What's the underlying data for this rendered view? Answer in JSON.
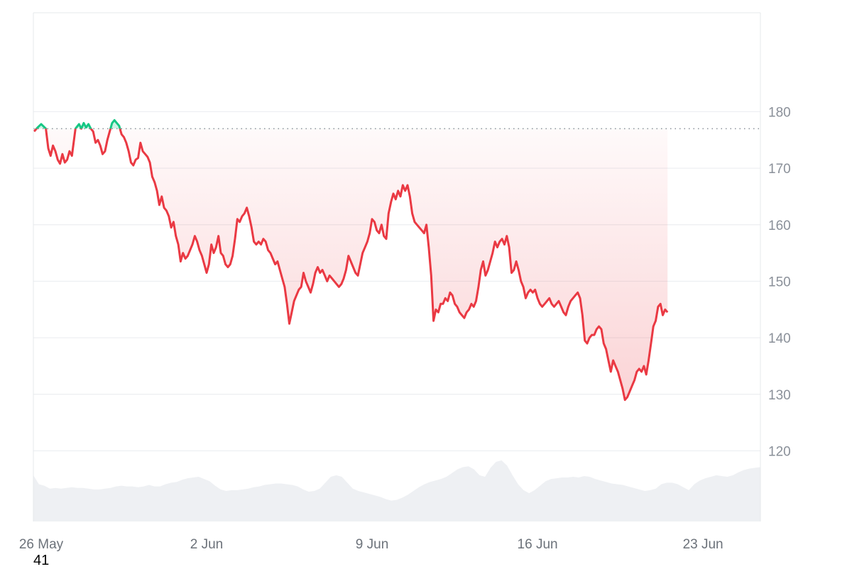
{
  "chart_data": {
    "type": "area",
    "title": "",
    "xlabel": "",
    "ylabel": "",
    "ylim": [
      107.5,
      197.5
    ],
    "baseline": 177,
    "y_ticks": [
      120,
      130,
      140,
      150,
      160,
      170,
      180
    ],
    "x_ticks": [
      "26 May",
      "2 Jun",
      "9 Jun",
      "16 Jun",
      "23 Jun"
    ],
    "x_tick_positions_days": [
      0.3,
      7.3,
      14.3,
      21.3,
      28.3
    ],
    "x_range_days": [
      0,
      30.7
    ],
    "colors": {
      "above_baseline": "#16c784",
      "below_baseline": "#ea3943",
      "baseline": "#8a9099",
      "volume": "#eef0f3",
      "grid": "#eceef1"
    },
    "series": [
      {
        "values": [
          [
            0.0,
            176.5
          ],
          [
            0.15,
            177.2
          ],
          [
            0.3,
            177.8
          ],
          [
            0.5,
            177.0
          ],
          [
            0.6,
            173.5
          ],
          [
            0.7,
            172.2
          ],
          [
            0.8,
            174.0
          ],
          [
            0.9,
            173.0
          ],
          [
            1.0,
            171.5
          ],
          [
            1.1,
            170.8
          ],
          [
            1.2,
            172.5
          ],
          [
            1.3,
            171.0
          ],
          [
            1.4,
            171.5
          ],
          [
            1.5,
            173.0
          ],
          [
            1.6,
            172.2
          ],
          [
            1.75,
            177.0
          ],
          [
            1.9,
            177.8
          ],
          [
            2.0,
            177.0
          ],
          [
            2.1,
            178.0
          ],
          [
            2.2,
            177.2
          ],
          [
            2.3,
            177.8
          ],
          [
            2.4,
            177.0
          ],
          [
            2.5,
            176.5
          ],
          [
            2.6,
            174.5
          ],
          [
            2.7,
            175.0
          ],
          [
            2.8,
            174.0
          ],
          [
            2.9,
            172.5
          ],
          [
            3.0,
            173.0
          ],
          [
            3.1,
            175.0
          ],
          [
            3.2,
            176.5
          ],
          [
            3.3,
            178.0
          ],
          [
            3.4,
            178.5
          ],
          [
            3.5,
            178.0
          ],
          [
            3.6,
            177.5
          ],
          [
            3.7,
            176.0
          ],
          [
            3.8,
            175.5
          ],
          [
            3.9,
            174.5
          ],
          [
            4.0,
            173.0
          ],
          [
            4.1,
            171.0
          ],
          [
            4.2,
            170.5
          ],
          [
            4.3,
            171.5
          ],
          [
            4.4,
            171.8
          ],
          [
            4.5,
            174.5
          ],
          [
            4.6,
            173.0
          ],
          [
            4.7,
            172.5
          ],
          [
            4.8,
            172.0
          ],
          [
            4.9,
            171.0
          ],
          [
            5.0,
            168.5
          ],
          [
            5.1,
            167.5
          ],
          [
            5.2,
            166.0
          ],
          [
            5.3,
            163.5
          ],
          [
            5.4,
            165.0
          ],
          [
            5.5,
            163.0
          ],
          [
            5.6,
            162.5
          ],
          [
            5.7,
            161.5
          ],
          [
            5.8,
            159.5
          ],
          [
            5.9,
            160.5
          ],
          [
            6.0,
            158.0
          ],
          [
            6.1,
            156.5
          ],
          [
            6.2,
            153.5
          ],
          [
            6.3,
            155.0
          ],
          [
            6.4,
            154.0
          ],
          [
            6.5,
            154.5
          ],
          [
            6.6,
            155.5
          ],
          [
            6.7,
            156.5
          ],
          [
            6.8,
            158.0
          ],
          [
            6.9,
            157.0
          ],
          [
            7.0,
            155.5
          ],
          [
            7.1,
            154.5
          ],
          [
            7.2,
            153.0
          ],
          [
            7.3,
            151.5
          ],
          [
            7.4,
            153.0
          ],
          [
            7.5,
            156.5
          ],
          [
            7.6,
            155.0
          ],
          [
            7.7,
            156.0
          ],
          [
            7.8,
            158.0
          ],
          [
            7.9,
            155.0
          ],
          [
            8.0,
            154.5
          ],
          [
            8.1,
            153.0
          ],
          [
            8.2,
            152.5
          ],
          [
            8.3,
            153.0
          ],
          [
            8.4,
            154.5
          ],
          [
            8.5,
            157.5
          ],
          [
            8.6,
            161.0
          ],
          [
            8.7,
            160.5
          ],
          [
            8.8,
            161.5
          ],
          [
            8.9,
            162.0
          ],
          [
            9.0,
            163.0
          ],
          [
            9.1,
            161.5
          ],
          [
            9.2,
            159.5
          ],
          [
            9.3,
            157.0
          ],
          [
            9.4,
            156.5
          ],
          [
            9.5,
            157.0
          ],
          [
            9.6,
            156.5
          ],
          [
            9.7,
            157.5
          ],
          [
            9.8,
            157.0
          ],
          [
            9.9,
            155.5
          ],
          [
            10.0,
            155.0
          ],
          [
            10.1,
            154.0
          ],
          [
            10.2,
            153.0
          ],
          [
            10.3,
            153.5
          ],
          [
            10.4,
            152.0
          ],
          [
            10.5,
            150.5
          ],
          [
            10.6,
            149.0
          ],
          [
            10.7,
            146.0
          ],
          [
            10.8,
            142.5
          ],
          [
            10.9,
            144.5
          ],
          [
            11.0,
            146.5
          ],
          [
            11.1,
            147.5
          ],
          [
            11.2,
            148.5
          ],
          [
            11.3,
            149.0
          ],
          [
            11.4,
            151.5
          ],
          [
            11.5,
            150.0
          ],
          [
            11.6,
            149.0
          ],
          [
            11.7,
            148.0
          ],
          [
            11.8,
            149.5
          ],
          [
            11.9,
            151.5
          ],
          [
            12.0,
            152.5
          ],
          [
            12.1,
            151.5
          ],
          [
            12.2,
            152.0
          ],
          [
            12.3,
            151.0
          ],
          [
            12.4,
            150.0
          ],
          [
            12.5,
            151.0
          ],
          [
            12.6,
            150.5
          ],
          [
            12.7,
            150.0
          ],
          [
            12.8,
            149.5
          ],
          [
            12.9,
            149.0
          ],
          [
            13.0,
            149.5
          ],
          [
            13.1,
            150.5
          ],
          [
            13.2,
            152.0
          ],
          [
            13.3,
            154.5
          ],
          [
            13.4,
            153.5
          ],
          [
            13.5,
            152.5
          ],
          [
            13.6,
            151.5
          ],
          [
            13.7,
            151.0
          ],
          [
            13.8,
            153.0
          ],
          [
            13.9,
            155.0
          ],
          [
            14.0,
            156.0
          ],
          [
            14.1,
            157.0
          ],
          [
            14.2,
            158.5
          ],
          [
            14.3,
            161.0
          ],
          [
            14.4,
            160.5
          ],
          [
            14.5,
            159.0
          ],
          [
            14.6,
            158.5
          ],
          [
            14.7,
            160.0
          ],
          [
            14.8,
            158.0
          ],
          [
            14.9,
            157.5
          ],
          [
            15.0,
            162.0
          ],
          [
            15.1,
            164.0
          ],
          [
            15.2,
            165.5
          ],
          [
            15.3,
            164.5
          ],
          [
            15.4,
            166.0
          ],
          [
            15.5,
            165.0
          ],
          [
            15.6,
            167.0
          ],
          [
            15.7,
            166.0
          ],
          [
            15.8,
            167.0
          ],
          [
            15.9,
            165.0
          ],
          [
            16.0,
            162.0
          ],
          [
            16.1,
            160.5
          ],
          [
            16.2,
            160.0
          ],
          [
            16.3,
            159.5
          ],
          [
            16.4,
            159.0
          ],
          [
            16.5,
            158.5
          ],
          [
            16.6,
            160.0
          ],
          [
            16.7,
            156.0
          ],
          [
            16.8,
            151.0
          ],
          [
            16.9,
            143.0
          ],
          [
            17.0,
            145.0
          ],
          [
            17.1,
            144.5
          ],
          [
            17.2,
            146.0
          ],
          [
            17.3,
            146.0
          ],
          [
            17.4,
            147.0
          ],
          [
            17.5,
            146.5
          ],
          [
            17.6,
            148.0
          ],
          [
            17.7,
            147.5
          ],
          [
            17.8,
            146.0
          ],
          [
            17.9,
            145.5
          ],
          [
            18.0,
            144.5
          ],
          [
            18.1,
            144.0
          ],
          [
            18.2,
            143.5
          ],
          [
            18.3,
            144.5
          ],
          [
            18.4,
            145.0
          ],
          [
            18.5,
            146.0
          ],
          [
            18.6,
            145.5
          ],
          [
            18.7,
            146.5
          ],
          [
            18.8,
            149.0
          ],
          [
            18.9,
            152.0
          ],
          [
            19.0,
            153.5
          ],
          [
            19.1,
            151.0
          ],
          [
            19.2,
            152.0
          ],
          [
            19.3,
            153.5
          ],
          [
            19.4,
            155.0
          ],
          [
            19.5,
            157.0
          ],
          [
            19.6,
            156.0
          ],
          [
            19.7,
            157.0
          ],
          [
            19.8,
            157.5
          ],
          [
            19.9,
            156.5
          ],
          [
            20.0,
            158.0
          ],
          [
            20.1,
            156.0
          ],
          [
            20.2,
            151.5
          ],
          [
            20.3,
            152.0
          ],
          [
            20.4,
            153.5
          ],
          [
            20.5,
            152.0
          ],
          [
            20.6,
            150.0
          ],
          [
            20.7,
            149.0
          ],
          [
            20.8,
            147.0
          ],
          [
            20.9,
            148.0
          ],
          [
            21.0,
            148.5
          ],
          [
            21.1,
            148.0
          ],
          [
            21.2,
            148.5
          ],
          [
            21.3,
            147.0
          ],
          [
            21.4,
            146.0
          ],
          [
            21.5,
            145.5
          ],
          [
            21.6,
            146.0
          ],
          [
            21.7,
            146.5
          ],
          [
            21.8,
            147.0
          ],
          [
            21.9,
            146.0
          ],
          [
            22.0,
            145.5
          ],
          [
            22.1,
            146.0
          ],
          [
            22.2,
            146.5
          ],
          [
            22.3,
            145.5
          ],
          [
            22.4,
            144.5
          ],
          [
            22.5,
            144.0
          ],
          [
            22.6,
            145.5
          ],
          [
            22.7,
            146.5
          ],
          [
            22.8,
            147.0
          ],
          [
            22.9,
            147.5
          ],
          [
            23.0,
            148.0
          ],
          [
            23.1,
            147.0
          ],
          [
            23.2,
            144.0
          ],
          [
            23.3,
            139.5
          ],
          [
            23.4,
            139.0
          ],
          [
            23.5,
            140.0
          ],
          [
            23.6,
            140.5
          ],
          [
            23.7,
            140.5
          ],
          [
            23.8,
            141.5
          ],
          [
            23.9,
            142.0
          ],
          [
            24.0,
            141.5
          ],
          [
            24.1,
            139.0
          ],
          [
            24.2,
            138.0
          ],
          [
            24.3,
            136.0
          ],
          [
            24.4,
            134.0
          ],
          [
            24.5,
            136.0
          ],
          [
            24.6,
            135.0
          ],
          [
            24.7,
            134.0
          ],
          [
            24.8,
            132.5
          ],
          [
            24.9,
            131.0
          ],
          [
            25.0,
            129.0
          ],
          [
            25.1,
            129.5
          ],
          [
            25.2,
            130.5
          ],
          [
            25.3,
            131.5
          ],
          [
            25.4,
            132.5
          ],
          [
            25.5,
            134.0
          ],
          [
            25.6,
            134.5
          ],
          [
            25.7,
            134.0
          ],
          [
            25.8,
            135.0
          ],
          [
            25.9,
            133.5
          ],
          [
            26.0,
            136.0
          ],
          [
            26.1,
            139.0
          ],
          [
            26.2,
            142.0
          ],
          [
            26.3,
            143.0
          ],
          [
            26.4,
            145.5
          ],
          [
            26.5,
            146.0
          ],
          [
            26.6,
            144.0
          ],
          [
            26.7,
            145.0
          ],
          [
            26.8,
            144.5
          ]
        ]
      }
    ],
    "volume": [
      0.62,
      0.5,
      0.48,
      0.44,
      0.45,
      0.44,
      0.45,
      0.46,
      0.45,
      0.45,
      0.44,
      0.43,
      0.43,
      0.44,
      0.45,
      0.47,
      0.48,
      0.47,
      0.47,
      0.46,
      0.47,
      0.49,
      0.47,
      0.47,
      0.5,
      0.52,
      0.53,
      0.56,
      0.58,
      0.59,
      0.6,
      0.57,
      0.54,
      0.48,
      0.43,
      0.41,
      0.42,
      0.42,
      0.43,
      0.44,
      0.46,
      0.47,
      0.49,
      0.5,
      0.51,
      0.51,
      0.5,
      0.49,
      0.47,
      0.43,
      0.4,
      0.41,
      0.44,
      0.52,
      0.6,
      0.62,
      0.6,
      0.52,
      0.44,
      0.41,
      0.39,
      0.37,
      0.35,
      0.33,
      0.3,
      0.28,
      0.29,
      0.32,
      0.36,
      0.41,
      0.46,
      0.5,
      0.53,
      0.55,
      0.57,
      0.6,
      0.65,
      0.7,
      0.73,
      0.74,
      0.7,
      0.62,
      0.6,
      0.72,
      0.8,
      0.82,
      0.75,
      0.62,
      0.5,
      0.42,
      0.38,
      0.42,
      0.48,
      0.54,
      0.57,
      0.58,
      0.59,
      0.59,
      0.6,
      0.59,
      0.61,
      0.6,
      0.57,
      0.55,
      0.53,
      0.51,
      0.5,
      0.49,
      0.47,
      0.45,
      0.43,
      0.41,
      0.42,
      0.44,
      0.5,
      0.52,
      0.52,
      0.5,
      0.46,
      0.42,
      0.5,
      0.55,
      0.58,
      0.6,
      0.62,
      0.61,
      0.6,
      0.62,
      0.66,
      0.69,
      0.71,
      0.72,
      0.73
    ]
  },
  "footer": {
    "number": "41"
  }
}
